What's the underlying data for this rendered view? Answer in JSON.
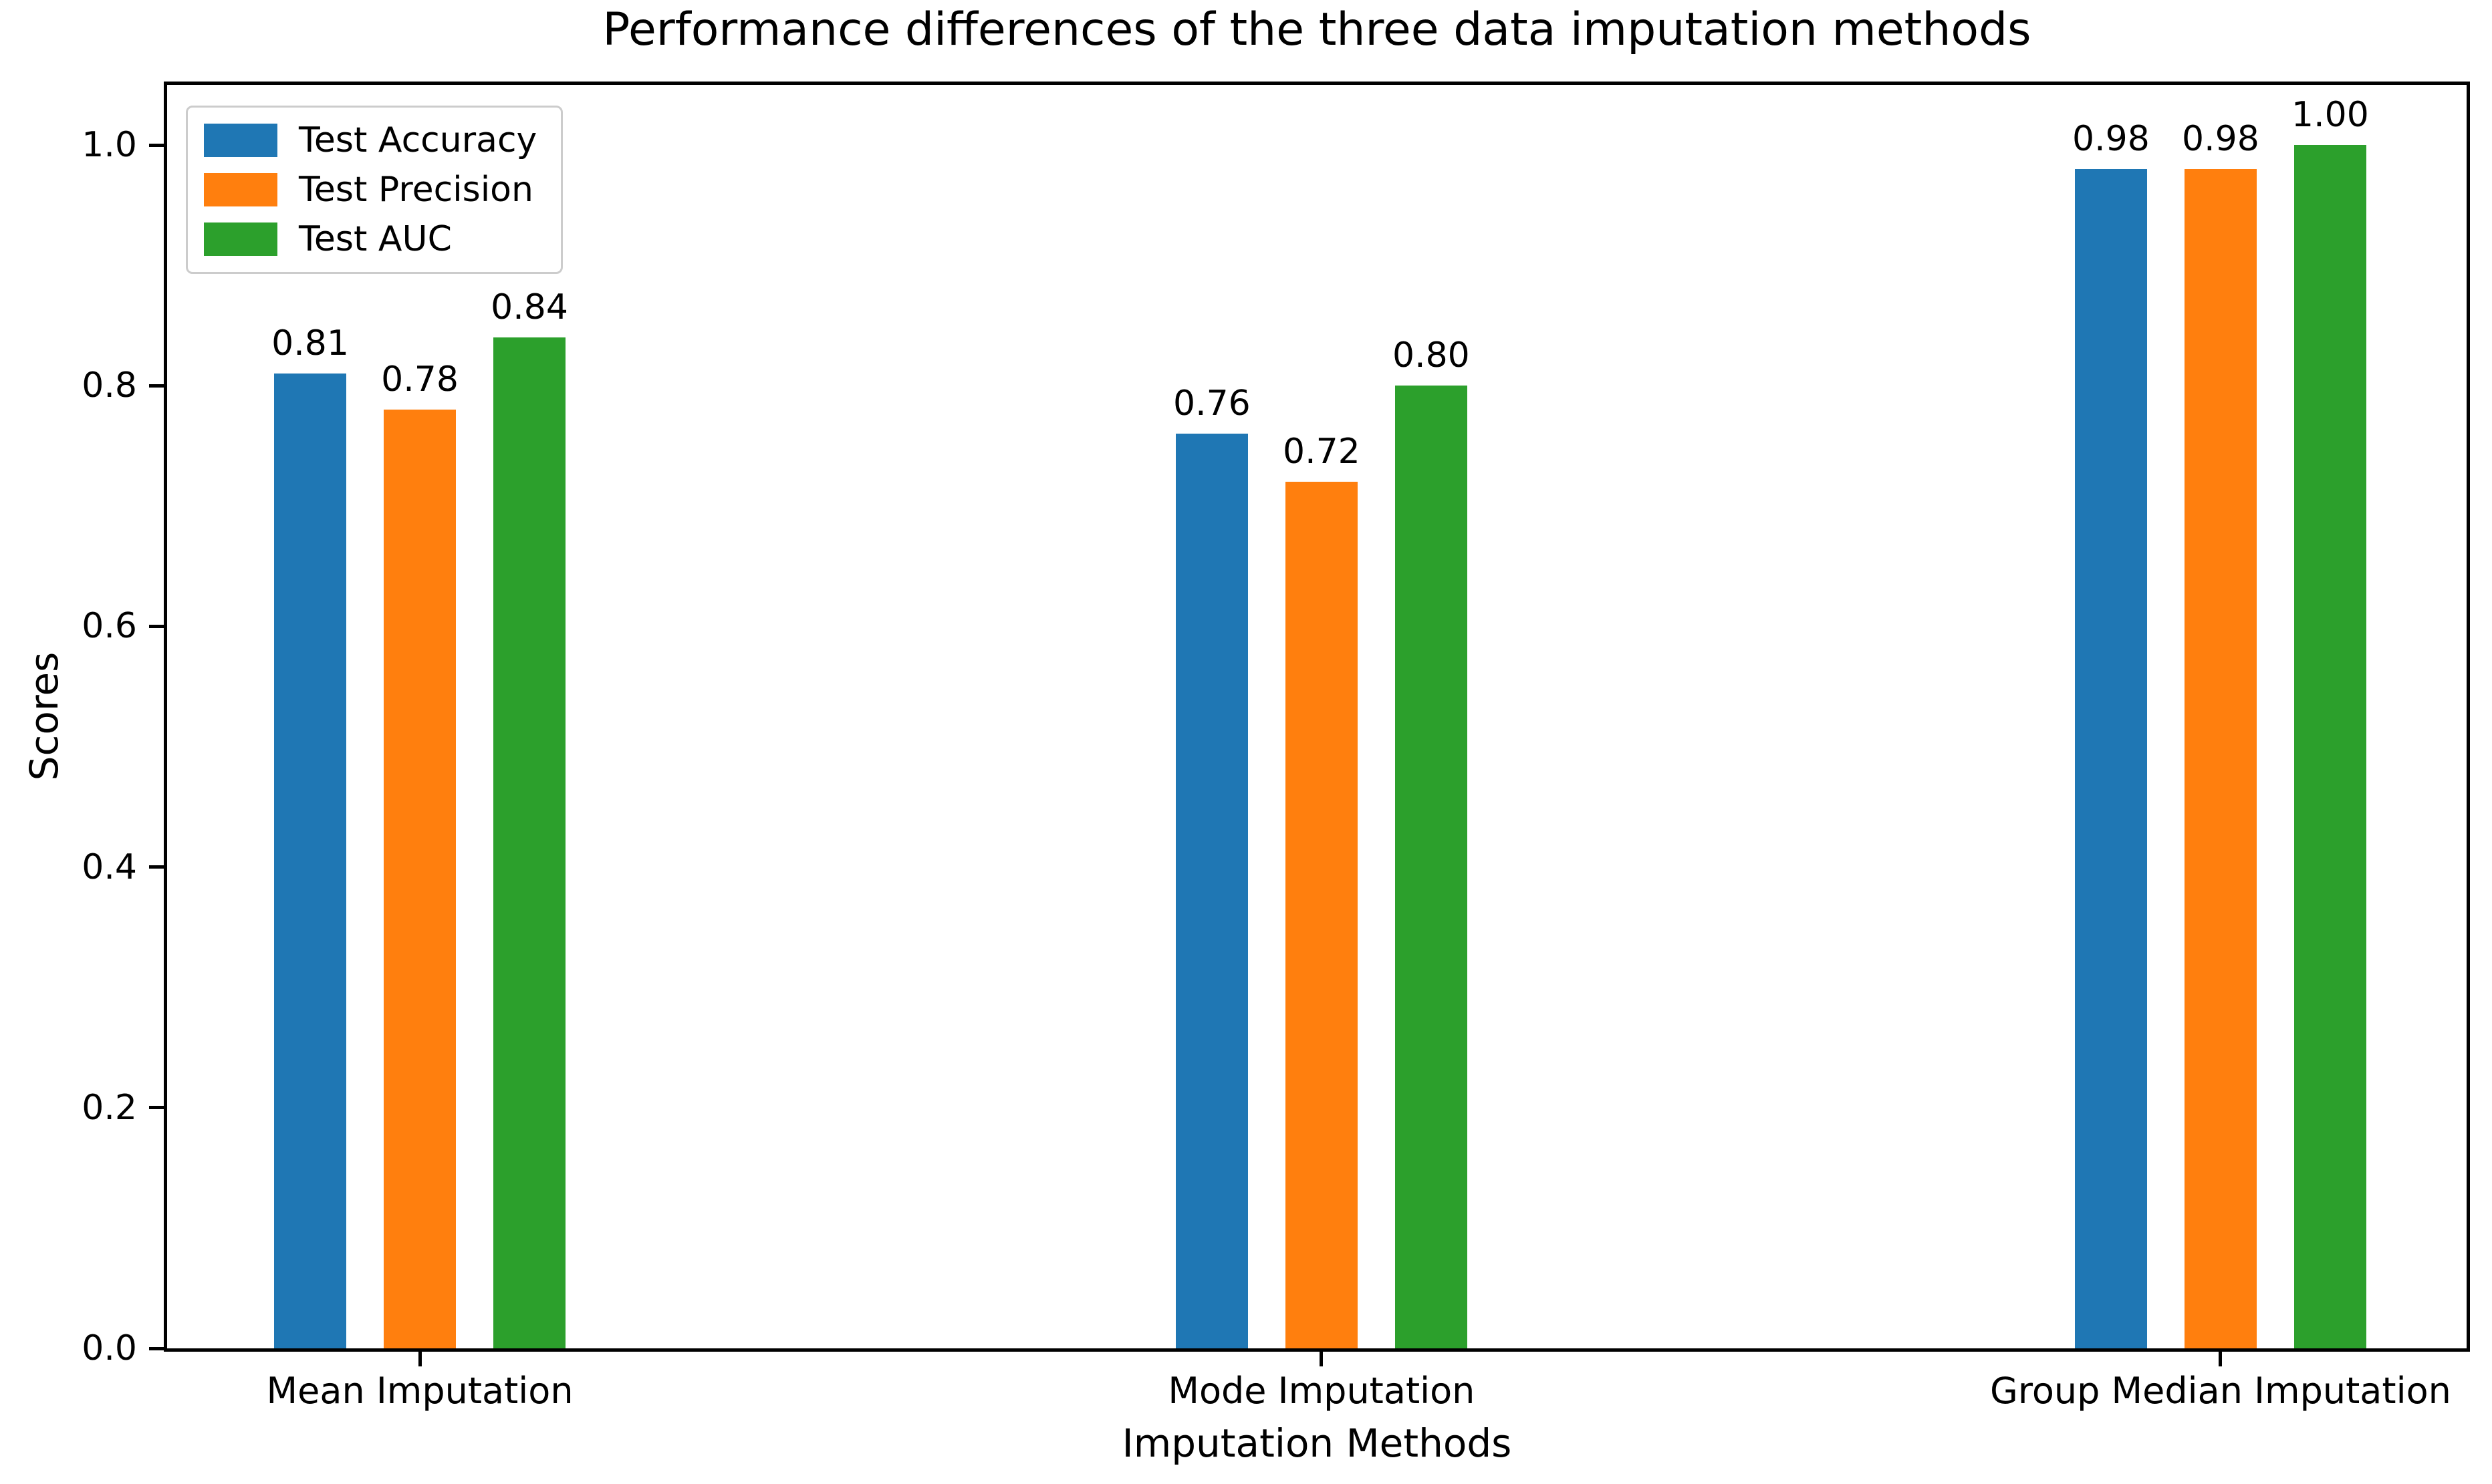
{
  "chart_data": {
    "type": "bar",
    "title": "Performance differences of the three data imputation methods",
    "xlabel": "Imputation Methods",
    "ylabel": "Scores",
    "categories": [
      "Mean Imputation",
      "Mode Imputation",
      "Group Median Imputation"
    ],
    "series": [
      {
        "name": "Test Accuracy",
        "color": "#1f77b4",
        "values": [
          0.81,
          0.76,
          0.98
        ],
        "labels": [
          "0.81",
          "0.76",
          "0.98"
        ]
      },
      {
        "name": "Test Precision",
        "color": "#ff7f0e",
        "values": [
          0.78,
          0.72,
          0.98
        ],
        "labels": [
          "0.78",
          "0.72",
          "0.98"
        ]
      },
      {
        "name": "Test AUC",
        "color": "#2ca02c",
        "values": [
          0.84,
          0.8,
          1.0
        ],
        "labels": [
          "0.84",
          "0.80",
          "1.00"
        ]
      }
    ],
    "ylim": [
      0,
      1.05
    ],
    "yticks": [
      0.0,
      0.2,
      0.4,
      0.6,
      0.8,
      1.0
    ],
    "ytick_labels": [
      "0.0",
      "0.2",
      "0.4",
      "0.6",
      "0.8",
      "1.0"
    ],
    "grid": false,
    "legend_position": "upper left",
    "bar_value_labels": true,
    "axis_color": "#000000",
    "background_color": "#ffffff",
    "text_color": "#000000"
  }
}
